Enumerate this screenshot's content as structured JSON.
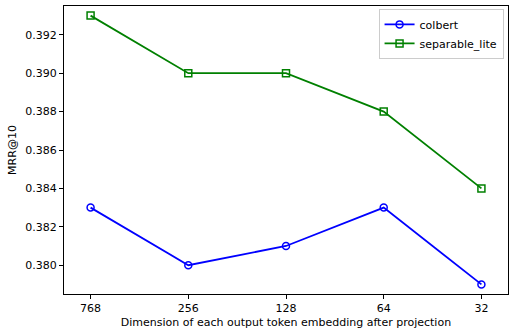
{
  "chart_data": {
    "type": "line",
    "x_label": "Dimension of each output token embedding after projection",
    "y_label": "MRR@10",
    "categories": [
      "768",
      "256",
      "128",
      "64",
      "32"
    ],
    "series": [
      {
        "name": "colbert",
        "color": "#0000ff",
        "marker": "circle-open",
        "line_style": "solid",
        "values": [
          0.383,
          0.38,
          0.381,
          0.383,
          0.379
        ]
      },
      {
        "name": "separable_lite",
        "color": "#008000",
        "marker": "square-open",
        "line_style": "solid",
        "values": [
          0.393,
          0.39,
          0.39,
          0.388,
          0.384
        ]
      }
    ],
    "ylim": [
      0.3785,
      0.3935
    ],
    "yticks": [
      {
        "value": 0.38,
        "label": "0.380"
      },
      0.382,
      0.384,
      0.386,
      0.388,
      {
        "value": 0.39,
        "label": "0.390"
      },
      0.392
    ],
    "grid": false,
    "legend": "upper right"
  }
}
